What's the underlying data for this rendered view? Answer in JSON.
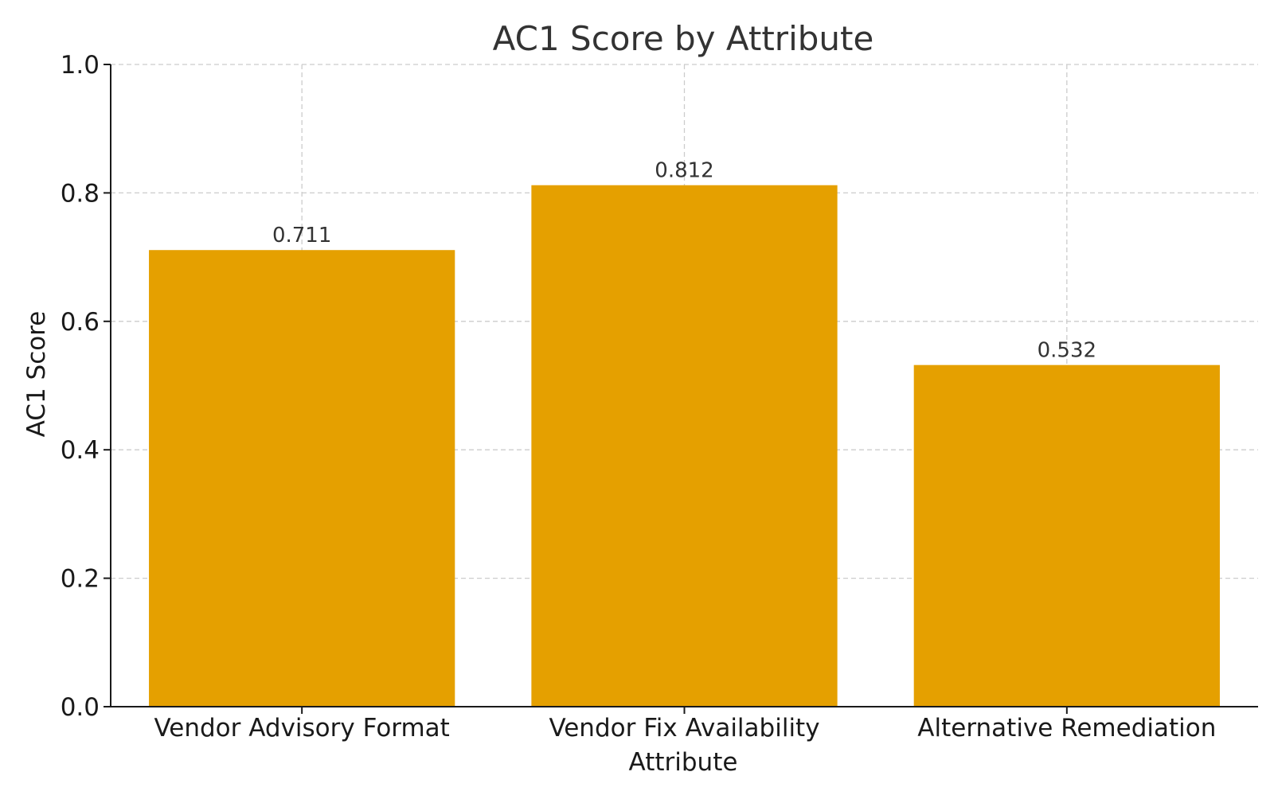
{
  "chart_data": {
    "type": "bar",
    "title": "AC1 Score by Attribute",
    "xlabel": "Attribute",
    "ylabel": "AC1 Score",
    "categories": [
      "Vendor Advisory Format",
      "Vendor Fix Availability",
      "Alternative Remediation"
    ],
    "values": [
      0.711,
      0.812,
      0.532
    ],
    "value_labels": [
      "0.711",
      "0.812",
      "0.532"
    ],
    "ylim": [
      0,
      1.0
    ],
    "yticks": [
      0.0,
      0.2,
      0.4,
      0.6,
      0.8,
      1.0
    ],
    "ytick_labels": [
      "0.0",
      "0.2",
      "0.4",
      "0.6",
      "0.8",
      "1.0"
    ],
    "grid": true,
    "legend": false,
    "bar_color": "#E5A000"
  }
}
